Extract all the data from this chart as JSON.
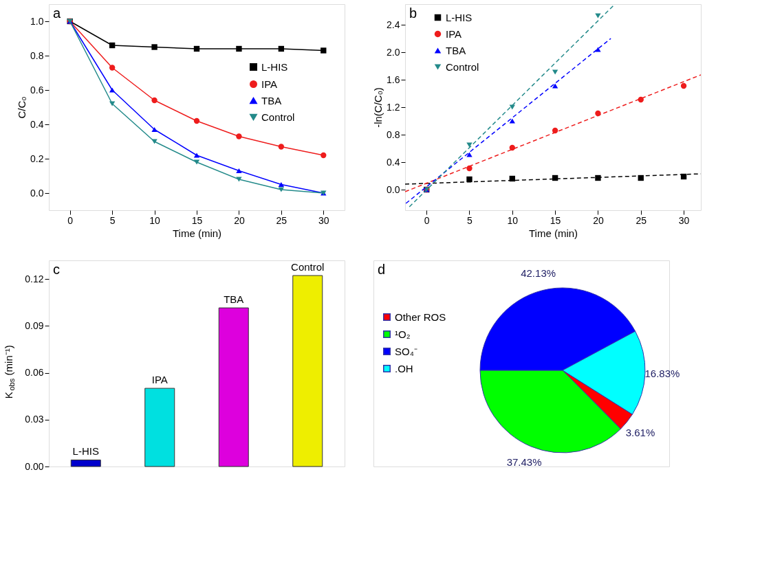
{
  "chart_data": [
    {
      "type": "line",
      "title": "a",
      "xlabel": "Time (min)",
      "ylabel": "C/C₀",
      "x": [
        0,
        5,
        10,
        15,
        20,
        25,
        30
      ],
      "xlim": [
        -2.5,
        32.5
      ],
      "xticks": [
        0,
        5,
        10,
        15,
        20,
        25,
        30
      ],
      "ylim": [
        -0.1,
        1.1
      ],
      "yticks": [
        {
          "value": 0,
          "label": "0.0"
        },
        0.2,
        0.4,
        0.6,
        0.8,
        {
          "value": 1,
          "label": "1.0"
        }
      ],
      "grid": false,
      "legend": "right",
      "line_style": "solid",
      "series": [
        {
          "name": "L-HIS",
          "color": "#000000",
          "marker": "square",
          "values": [
            1.0,
            0.86,
            0.85,
            0.84,
            0.84,
            0.84,
            0.83
          ]
        },
        {
          "name": "IPA",
          "color": "#ee1c1c",
          "marker": "circle",
          "values": [
            1.0,
            0.73,
            0.54,
            0.42,
            0.33,
            0.27,
            0.22
          ]
        },
        {
          "name": "TBA",
          "color": "#0000ff",
          "marker": "triangle",
          "values": [
            1.0,
            0.6,
            0.37,
            0.22,
            0.13,
            0.05,
            0.0
          ]
        },
        {
          "name": "Control",
          "color": "#238a8a",
          "marker": "triangle-down",
          "values": [
            1.0,
            0.52,
            0.3,
            0.18,
            0.08,
            0.02,
            0.0
          ]
        }
      ]
    },
    {
      "type": "scatter",
      "title": "b",
      "xlabel": "Time (min)",
      "ylabel": "-ln(C/C₀)",
      "x": [
        0,
        5,
        10,
        15,
        20,
        25,
        30
      ],
      "xlim": [
        -2.5,
        32
      ],
      "xticks": [
        0,
        5,
        10,
        15,
        20,
        25,
        30
      ],
      "ylim": [
        -0.3,
        2.7
      ],
      "yticks": [
        {
          "value": 0,
          "label": "0.0"
        },
        0.4,
        0.8,
        1.2,
        1.6,
        {
          "value": 2,
          "label": "2.0"
        },
        2.4
      ],
      "grid": false,
      "legend": "top left",
      "series": [
        {
          "name": "L-HIS",
          "color": "#000000",
          "marker": "square",
          "values": [
            0.0,
            0.15,
            0.16,
            0.17,
            0.17,
            0.17,
            0.19
          ]
        },
        {
          "name": "IPA",
          "color": "#ee1c1c",
          "marker": "circle",
          "values": [
            0.0,
            0.31,
            0.61,
            0.86,
            1.11,
            1.31,
            1.51
          ]
        },
        {
          "name": "TBA",
          "color": "#0000ff",
          "marker": "triangle",
          "x": [
            0,
            5,
            10,
            15,
            20
          ],
          "values": [
            0.0,
            0.51,
            1.0,
            1.51,
            2.04
          ]
        },
        {
          "name": "Control",
          "color": "#238a8a",
          "marker": "triangle-down",
          "x": [
            0,
            5,
            10,
            15,
            20
          ],
          "values": [
            0.0,
            0.65,
            1.2,
            1.71,
            2.53
          ]
        },
        {
          "type": "line",
          "line_style": "dashed",
          "color": "#000000",
          "x": [
            -2.5,
            32
          ],
          "values": [
            0.08,
            0.23
          ]
        },
        {
          "type": "line",
          "line_style": "dashed",
          "color": "#ee1c1c",
          "x": [
            -2.5,
            32
          ],
          "values": [
            -0.03,
            1.67
          ]
        },
        {
          "type": "line",
          "line_style": "dashed",
          "color": "#0000ff",
          "x": [
            -2.4,
            21.5
          ],
          "values": [
            -0.2,
            2.2
          ]
        },
        {
          "type": "line",
          "line_style": "dashed",
          "color": "#238a8a",
          "x": [
            -2.0,
            21.9
          ],
          "values": [
            -0.25,
            2.69
          ]
        }
      ]
    },
    {
      "type": "bar",
      "title": "c",
      "ylabel": "K$_{obs}$ (min⁻¹)",
      "categories": [
        null,
        null,
        null,
        null
      ],
      "values": [
        0.0042,
        0.0501,
        0.1016,
        0.1223
      ],
      "value_labels": [
        "L-HIS",
        "IPA",
        "TBA",
        "Control"
      ],
      "colors": [
        "#0000cc",
        "#00e0e0",
        "#dd00dd",
        "#eeee00"
      ],
      "ylim": [
        0,
        0.132
      ],
      "yticks": [
        {
          "value": 0,
          "label": "0.00"
        },
        0.03,
        0.06,
        0.09,
        0.12
      ],
      "grid": false,
      "tick_labels": "y"
    },
    {
      "type": "pie",
      "title": "d",
      "categories": [
        "Other ROS",
        "¹O₂",
        "SO₄⁻",
        ".OH"
      ],
      "values": [
        3.61,
        37.43,
        42.13,
        16.83
      ],
      "colors": [
        "#ff0000",
        "#00ff00",
        "#0000ff",
        "#00ffff"
      ],
      "value_labels": [
        "3.61%",
        "37.43%",
        "42.13%",
        "16.83%"
      ],
      "legend": "left"
    }
  ]
}
